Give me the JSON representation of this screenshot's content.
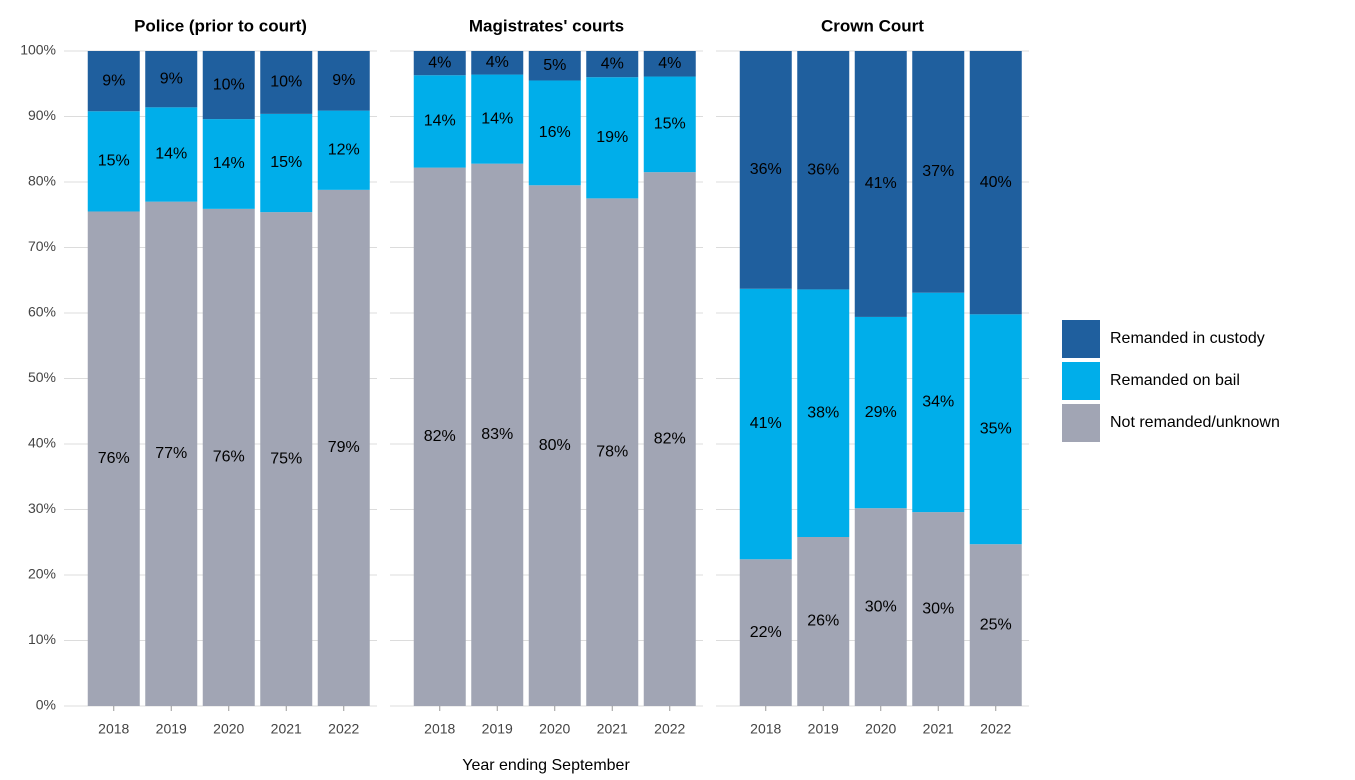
{
  "chart_data": {
    "type": "bar",
    "stacked": true,
    "xlabel": "Year ending September",
    "ylim": [
      0,
      100
    ],
    "yticks": [
      {
        "value": 0,
        "label": "0%"
      },
      {
        "value": 10,
        "label": "10%"
      },
      {
        "value": 20,
        "label": "20%"
      },
      {
        "value": 30,
        "label": "30%"
      },
      {
        "value": 40,
        "label": "40%"
      },
      {
        "value": 50,
        "label": "50%"
      },
      {
        "value": 60,
        "label": "60%"
      },
      {
        "value": 70,
        "label": "70%"
      },
      {
        "value": 80,
        "label": "80%"
      },
      {
        "value": 90,
        "label": "90%"
      },
      {
        "value": 100,
        "label": "100%"
      }
    ],
    "grid": true,
    "legend": "right",
    "series": [
      {
        "name": "Remanded in custody",
        "color": "#1f5f9e"
      },
      {
        "name": "Remanded on bail",
        "color": "#00aeea"
      },
      {
        "name": "Not remanded/unknown",
        "color": "#a1a5b4"
      }
    ],
    "panels": [
      {
        "title": "Police (prior to court)",
        "categories": [
          "2018",
          "2019",
          "2020",
          "2021",
          "2022"
        ],
        "series": [
          {
            "values": [
              9.2,
              8.6,
              10.4,
              9.6,
              9.1
            ],
            "value_labels": [
              "9%",
              "9%",
              "10%",
              "10%",
              "9%"
            ]
          },
          {
            "values": [
              15.3,
              14.4,
              13.7,
              15.0,
              12.1
            ],
            "value_labels": [
              "15%",
              "14%",
              "14%",
              "15%",
              "12%"
            ]
          },
          {
            "values": [
              75.5,
              77.0,
              75.9,
              75.4,
              78.8
            ],
            "value_labels": [
              "76%",
              "77%",
              "76%",
              "75%",
              "79%"
            ]
          }
        ]
      },
      {
        "title": "Magistrates' courts",
        "categories": [
          "2018",
          "2019",
          "2020",
          "2021",
          "2022"
        ],
        "series": [
          {
            "values": [
              3.7,
              3.6,
              4.5,
              4.0,
              3.9
            ],
            "value_labels": [
              "4%",
              "4%",
              "5%",
              "4%",
              "4%"
            ]
          },
          {
            "values": [
              14.1,
              13.6,
              16.0,
              18.5,
              14.6
            ],
            "value_labels": [
              "14%",
              "14%",
              "16%",
              "19%",
              "15%"
            ]
          },
          {
            "values": [
              82.2,
              82.8,
              79.5,
              77.5,
              81.5
            ],
            "value_labels": [
              "82%",
              "83%",
              "80%",
              "78%",
              "82%"
            ]
          }
        ]
      },
      {
        "title": "Crown Court",
        "categories": [
          "2018",
          "2019",
          "2020",
          "2021",
          "2022"
        ],
        "series": [
          {
            "values": [
              36.3,
              36.4,
              40.6,
              36.9,
              40.2
            ],
            "value_labels": [
              "36%",
              "36%",
              "41%",
              "37%",
              "40%"
            ]
          },
          {
            "values": [
              41.3,
              37.8,
              29.2,
              33.5,
              35.1
            ],
            "value_labels": [
              "41%",
              "38%",
              "29%",
              "34%",
              "35%"
            ]
          },
          {
            "values": [
              22.4,
              25.8,
              30.2,
              29.6,
              24.7
            ],
            "value_labels": [
              "22%",
              "26%",
              "30%",
              "30%",
              "25%"
            ]
          }
        ]
      }
    ]
  }
}
